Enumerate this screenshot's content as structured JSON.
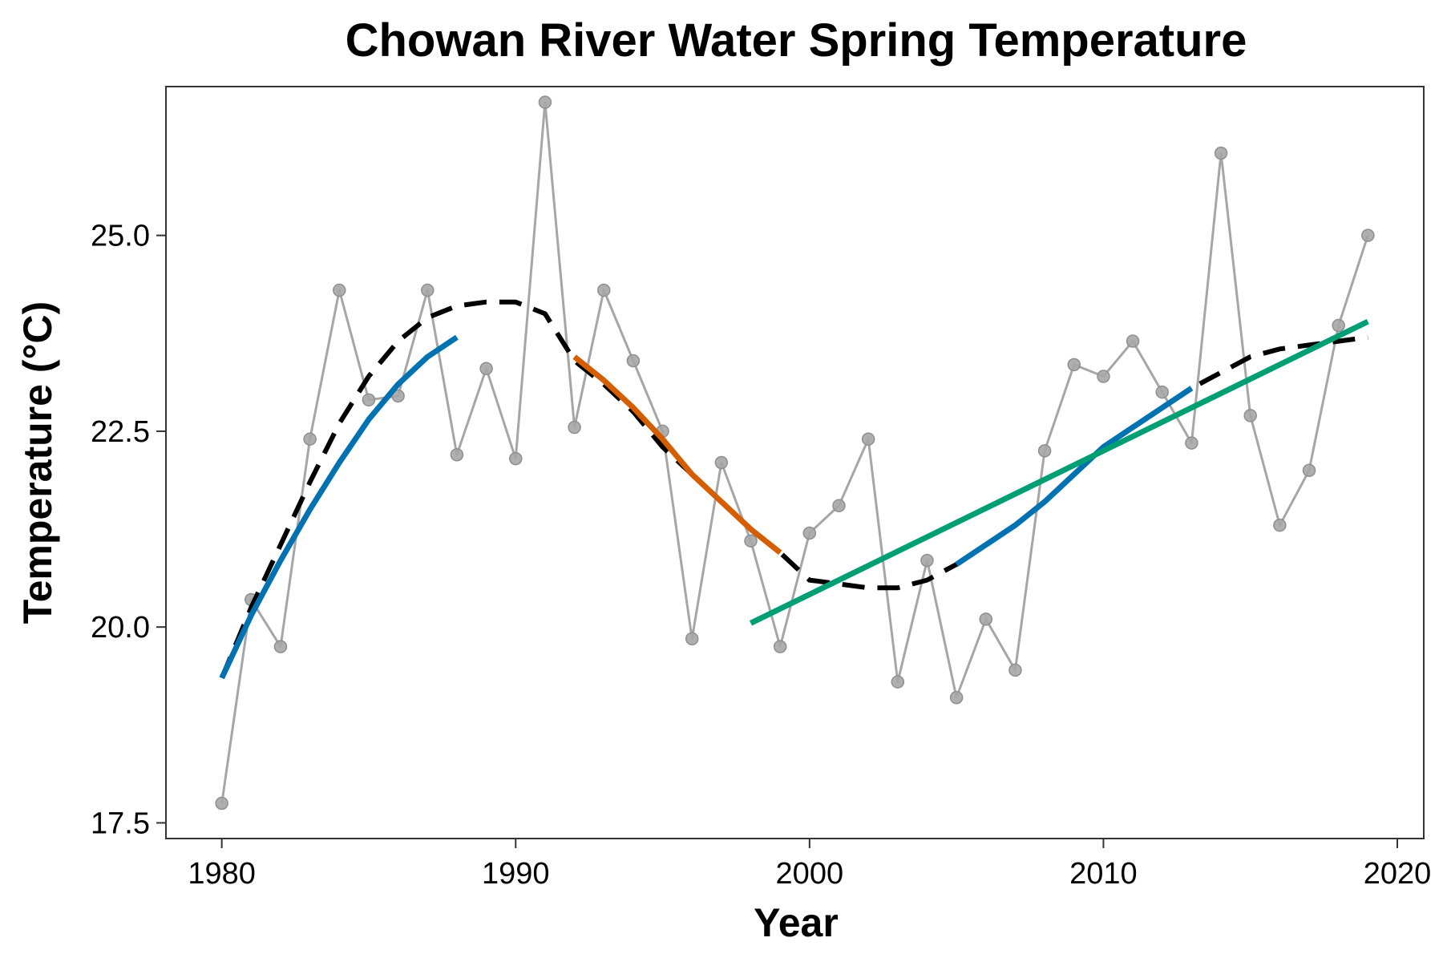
{
  "chart_data": {
    "type": "line",
    "title": "Chowan River Water Spring Temperature",
    "xlabel": "Year",
    "ylabel": "Temperature (°C)",
    "xlim": [
      1978.1,
      2020.9
    ],
    "ylim": [
      17.3,
      26.9
    ],
    "grid": false,
    "legend": "none",
    "x_ticks": [
      1980,
      1990,
      2000,
      2010,
      2020
    ],
    "x_tick_labels": [
      "1980",
      "1990",
      "2000",
      "2010",
      "2020"
    ],
    "y_ticks": [
      17.5,
      20.0,
      22.5,
      25.0
    ],
    "y_tick_labels": [
      "17.5",
      "20.0",
      "22.5",
      "25.0"
    ],
    "observations": {
      "color": "#a6a6a6",
      "x": [
        1980,
        1981,
        1982,
        1983,
        1984,
        1985,
        1986,
        1987,
        1988,
        1989,
        1990,
        1991,
        1992,
        1993,
        1994,
        1995,
        1996,
        1997,
        1998,
        1999,
        2000,
        2001,
        2002,
        2003,
        2004,
        2005,
        2006,
        2007,
        2008,
        2009,
        2010,
        2011,
        2012,
        2013,
        2014,
        2015,
        2016,
        2017,
        2018,
        2019
      ],
      "y": [
        17.75,
        20.35,
        19.75,
        22.4,
        24.3,
        22.9,
        22.95,
        24.3,
        22.2,
        23.3,
        22.15,
        26.7,
        22.55,
        24.3,
        23.4,
        22.5,
        19.85,
        22.1,
        21.1,
        19.75,
        21.2,
        21.55,
        22.4,
        19.3,
        20.85,
        19.1,
        20.1,
        19.45,
        22.25,
        23.35,
        23.2,
        23.65,
        23.0,
        22.35,
        26.05,
        22.7,
        21.3,
        22.0,
        23.85,
        25.0
      ]
    },
    "trend_curve": {
      "x": [
        1980,
        1981,
        1982,
        1983,
        1984,
        1985,
        1986,
        1987,
        1988,
        1989,
        1990,
        1991,
        1992,
        1993,
        1994,
        1995,
        1996,
        1997,
        1998,
        1999,
        2000,
        2001,
        2002,
        2003,
        2004,
        2005,
        2006,
        2007,
        2008,
        2009,
        2010,
        2011,
        2012,
        2013,
        2014,
        2015,
        2016,
        2017,
        2018,
        2019
      ],
      "y": [
        19.35,
        20.25,
        21.05,
        21.85,
        22.6,
        23.2,
        23.65,
        23.95,
        24.1,
        24.15,
        24.15,
        24.0,
        23.4,
        23.1,
        22.75,
        22.3,
        21.95,
        21.6,
        21.25,
        20.95,
        20.6,
        20.55,
        20.5,
        20.5,
        20.6,
        20.8,
        21.05,
        21.3,
        21.6,
        21.95,
        22.3,
        22.55,
        22.8,
        23.05,
        23.25,
        23.45,
        23.55,
        23.6,
        23.65,
        23.7
      ],
      "color": "#000000",
      "style": "dashed"
    },
    "increasing_segments": {
      "color": "#0072b2",
      "segments": [
        {
          "x": [
            1980,
            1981,
            1982,
            1983,
            1984,
            1985,
            1986,
            1987,
            1988
          ],
          "y": [
            19.35,
            20.15,
            20.85,
            21.5,
            22.1,
            22.65,
            23.1,
            23.45,
            23.7
          ]
        },
        {
          "x": [
            2005,
            2006,
            2007,
            2008,
            2009,
            2010,
            2011,
            2012,
            2013
          ],
          "y": [
            20.8,
            21.05,
            21.3,
            21.6,
            21.95,
            22.3,
            22.55,
            22.8,
            23.05
          ]
        }
      ]
    },
    "decreasing_segments": {
      "color": "#d55e00",
      "segments": [
        {
          "x": [
            1992,
            1993,
            1994,
            1995,
            1996,
            1997,
            1998,
            1999
          ],
          "y": [
            23.45,
            23.15,
            22.8,
            22.4,
            21.95,
            21.6,
            21.25,
            20.95
          ]
        }
      ]
    },
    "linear_fit": {
      "color": "#009e73",
      "x": [
        1998,
        2019
      ],
      "y": [
        20.05,
        23.9
      ]
    }
  }
}
